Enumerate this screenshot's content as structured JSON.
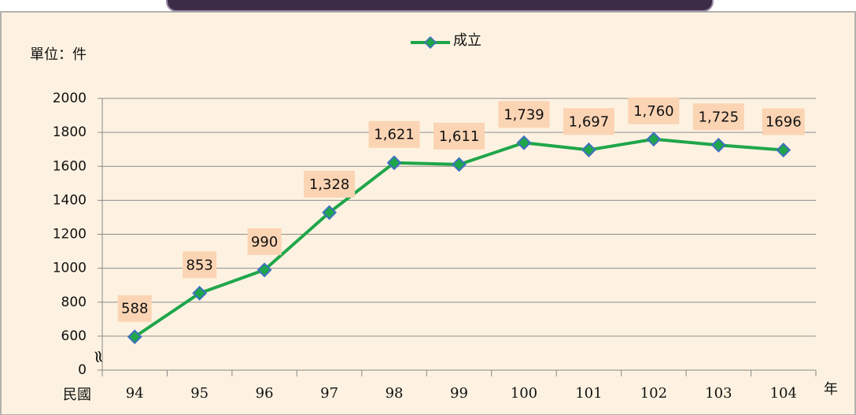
{
  "chart_data": {
    "type": "line",
    "legend_label": "成立",
    "unit_label": "單位：件",
    "x_axis_label": "民國",
    "x_axis_unit": "年",
    "categories": [
      "94",
      "95",
      "96",
      "97",
      "98",
      "99",
      "100",
      "101",
      "102",
      "103",
      "104"
    ],
    "series": [
      {
        "name": "成立",
        "color": "#1fa64a",
        "values": [
          588,
          853,
          990,
          1328,
          1621,
          1611,
          1739,
          1697,
          1760,
          1725,
          1696
        ],
        "value_labels": [
          "588",
          "853",
          "990",
          "1,328",
          "1,621",
          "1,611",
          "1,739",
          "1,697",
          "1,760",
          "1,725",
          "1696"
        ]
      }
    ],
    "ylim": [
      0,
      2000
    ],
    "yticks": [
      0,
      600,
      800,
      1000,
      1200,
      1400,
      1600,
      1800,
      2000
    ],
    "axis_break": true,
    "grid": true,
    "legend": "top"
  }
}
